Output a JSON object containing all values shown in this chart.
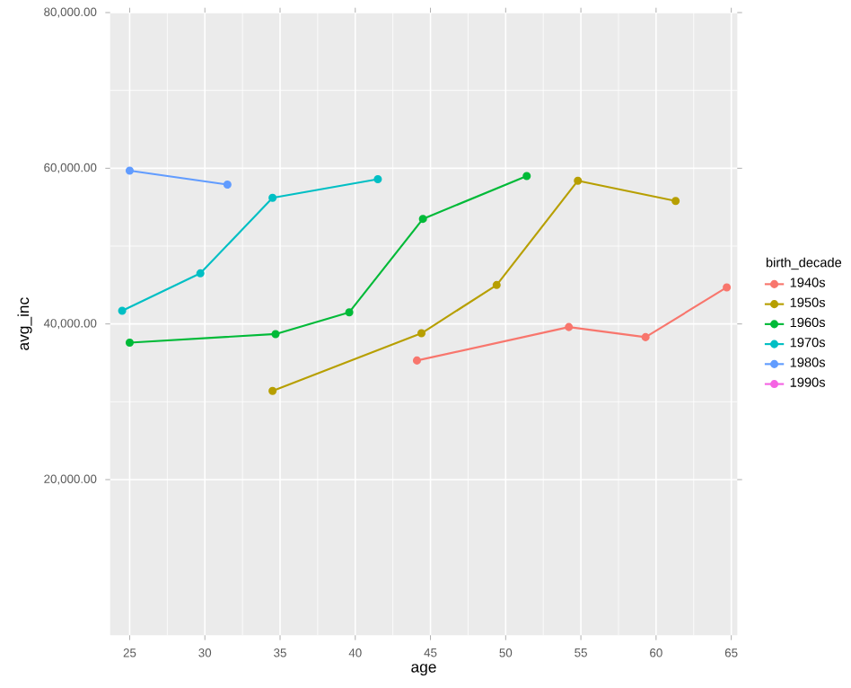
{
  "chart_data": {
    "type": "line",
    "xlabel": "age",
    "ylabel": "avg_inc",
    "legend_title": "birth_decade",
    "xlim": [
      23.7,
      65.4
    ],
    "ylim": [
      0,
      80000
    ],
    "xticks": [
      25,
      30,
      35,
      40,
      45,
      50,
      55,
      60,
      65
    ],
    "yticks": [
      {
        "value": 20000,
        "label": "20,000.00"
      },
      {
        "value": 40000,
        "label": "40,000.00"
      },
      {
        "value": 60000,
        "label": "60,000.00"
      },
      {
        "value": 80000,
        "label": "80,000.00"
      }
    ],
    "grid": true,
    "legend": "right",
    "marker": "circle",
    "line_style": "solid",
    "series": [
      {
        "name": "1940s",
        "color": "#F8766D",
        "x": [
          44.1,
          54.2,
          59.3,
          64.7
        ],
        "values": [
          35300,
          39600,
          38300,
          44700
        ]
      },
      {
        "name": "1950s",
        "color": "#B79F00",
        "x": [
          34.5,
          44.4,
          49.4,
          54.8,
          61.3
        ],
        "values": [
          31400,
          38800,
          45000,
          58400,
          55800
        ]
      },
      {
        "name": "1960s",
        "color": "#00BA38",
        "x": [
          25,
          34.7,
          39.6,
          44.5,
          51.4
        ],
        "values": [
          37600,
          38700,
          41500,
          53500,
          59000
        ]
      },
      {
        "name": "1970s",
        "color": "#00BFC4",
        "x": [
          24.5,
          29.7,
          34.5,
          41.5
        ],
        "values": [
          41700,
          46500,
          56200,
          58600
        ]
      },
      {
        "name": "1980s",
        "color": "#619CFF",
        "x": [
          25,
          31.5
        ],
        "values": [
          59700,
          57900
        ]
      },
      {
        "name": "1990s",
        "color": "#F564E3"
      }
    ]
  }
}
